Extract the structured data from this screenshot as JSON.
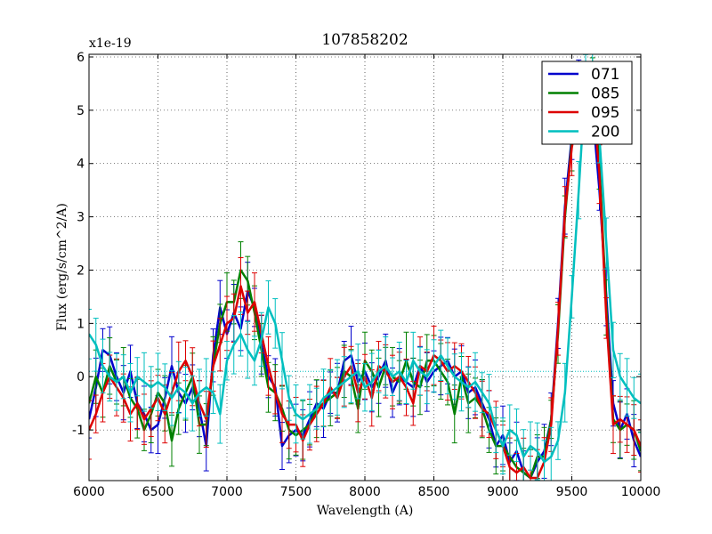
{
  "chart_data": {
    "type": "line",
    "title": "107858202",
    "xlabel": "Wavelength (A)",
    "ylabel": "Flux (erg/s/cm^2/A)",
    "y_offset_label": "x1e-19",
    "xlim": [
      6000,
      10000
    ],
    "ylim": [
      -1.95,
      6.05
    ],
    "x_ticks": [
      6000,
      6500,
      7000,
      7500,
      8000,
      8500,
      9000,
      9500,
      10000
    ],
    "y_ticks": [
      -1,
      0,
      1,
      2,
      3,
      4,
      5,
      6
    ],
    "grid": true,
    "legend_position": "top-right",
    "reference_line": {
      "y": 0.1,
      "style": "dotted",
      "color": "#00bfbf"
    },
    "series": [
      {
        "name": "071",
        "color": "#0000cc",
        "x": [
          6000,
          6050,
          6100,
          6150,
          6200,
          6250,
          6300,
          6350,
          6400,
          6450,
          6500,
          6550,
          6600,
          6650,
          6700,
          6750,
          6800,
          6850,
          6900,
          6950,
          7000,
          7050,
          7100,
          7150,
          7200,
          7250,
          7300,
          7350,
          7400,
          7450,
          7500,
          7550,
          7600,
          7650,
          7700,
          7750,
          7800,
          7850,
          7900,
          7950,
          8000,
          8050,
          8100,
          8150,
          8200,
          8250,
          8300,
          8350,
          8400,
          8450,
          8500,
          8550,
          8600,
          8650,
          8700,
          8750,
          8800,
          8850,
          8900,
          8950,
          9000,
          9050,
          9100,
          9150,
          9200,
          9250,
          9300,
          9350,
          9400,
          9450,
          9500,
          9550,
          9600,
          9650,
          9700,
          9750,
          9800,
          9850,
          9900,
          9950,
          10000
        ],
        "y": [
          -0.8,
          -0.2,
          0.5,
          0.4,
          0.0,
          -0.3,
          0.1,
          -0.5,
          -0.7,
          -1.0,
          -0.9,
          -0.4,
          0.2,
          -0.3,
          -0.5,
          -0.2,
          -0.6,
          -1.3,
          0.4,
          1.3,
          0.8,
          1.2,
          0.9,
          1.6,
          1.3,
          0.6,
          0.0,
          -0.2,
          -1.3,
          -1.1,
          -1.0,
          -1.1,
          -0.8,
          -0.5,
          -0.6,
          -0.3,
          -0.3,
          0.3,
          0.4,
          -0.1,
          0.1,
          -0.2,
          0.0,
          0.3,
          -0.3,
          0.0,
          -0.1,
          -0.2,
          0.2,
          -0.1,
          0.1,
          0.2,
          0.3,
          0.0,
          0.1,
          -0.3,
          -0.2,
          -0.5,
          -0.8,
          -1.3,
          -1.1,
          -1.6,
          -1.4,
          -1.8,
          -1.9,
          -1.6,
          -1.4,
          -0.8,
          1.0,
          3.2,
          4.5,
          5.4,
          5.8,
          5.0,
          3.5,
          1.5,
          -0.5,
          -1.0,
          -0.7,
          -1.2,
          -1.5
        ]
      },
      {
        "name": "085",
        "color": "#008000",
        "x": [
          6000,
          6050,
          6100,
          6150,
          6200,
          6250,
          6300,
          6350,
          6400,
          6450,
          6500,
          6550,
          6600,
          6650,
          6700,
          6750,
          6800,
          6850,
          6900,
          6950,
          7000,
          7050,
          7100,
          7150,
          7200,
          7250,
          7300,
          7350,
          7400,
          7450,
          7500,
          7550,
          7600,
          7650,
          7700,
          7750,
          7800,
          7850,
          7900,
          7950,
          8000,
          8050,
          8100,
          8150,
          8200,
          8250,
          8300,
          8350,
          8400,
          8450,
          8500,
          8550,
          8600,
          8650,
          8700,
          8750,
          8800,
          8850,
          8900,
          8950,
          9000,
          9050,
          9100,
          9150,
          9200,
          9250,
          9300,
          9350,
          9400,
          9450,
          9500,
          9550,
          9600,
          9650,
          9700,
          9750,
          9800,
          9850,
          9900,
          9950,
          10000
        ],
        "y": [
          -0.5,
          0.0,
          -0.3,
          0.2,
          -0.1,
          0.0,
          -0.4,
          -0.6,
          -1.0,
          -0.7,
          -0.3,
          -0.5,
          -1.2,
          -0.6,
          -0.3,
          0.0,
          -0.9,
          -0.9,
          0.2,
          1.0,
          1.4,
          1.4,
          2.0,
          1.8,
          1.2,
          0.5,
          -0.2,
          -0.3,
          -0.6,
          -1.0,
          -1.1,
          -1.0,
          -0.9,
          -0.6,
          -0.5,
          -0.4,
          -0.3,
          0.1,
          0.0,
          -0.6,
          0.3,
          0.1,
          -0.2,
          0.2,
          0.0,
          -0.1,
          0.3,
          -0.1,
          -0.2,
          0.3,
          0.3,
          0.1,
          -0.1,
          -0.7,
          0.0,
          -0.5,
          -0.4,
          -0.6,
          -1.0,
          -1.3,
          -1.3,
          -1.5,
          -1.7,
          -1.8,
          -1.9,
          -1.5,
          -1.5,
          -0.8,
          0.8,
          3.0,
          4.4,
          5.2,
          5.8,
          5.5,
          4.0,
          1.3,
          -0.8,
          -1.0,
          -0.9,
          -1.0,
          -1.4
        ]
      },
      {
        "name": "095",
        "color": "#dd0000",
        "x": [
          6000,
          6050,
          6100,
          6150,
          6200,
          6250,
          6300,
          6350,
          6400,
          6450,
          6500,
          6550,
          6600,
          6650,
          6700,
          6750,
          6800,
          6850,
          6900,
          6950,
          7000,
          7050,
          7100,
          7150,
          7200,
          7250,
          7300,
          7350,
          7400,
          7450,
          7500,
          7550,
          7600,
          7650,
          7700,
          7750,
          7800,
          7850,
          7900,
          7950,
          8000,
          8050,
          8100,
          8150,
          8200,
          8250,
          8300,
          8350,
          8400,
          8450,
          8500,
          8550,
          8600,
          8650,
          8700,
          8750,
          8800,
          8850,
          8900,
          8950,
          9000,
          9050,
          9100,
          9150,
          9200,
          9250,
          9300,
          9350,
          9400,
          9450,
          9500,
          9550,
          9600,
          9650,
          9700,
          9750,
          9800,
          9850,
          9900,
          9950,
          10000
        ],
        "y": [
          -1.0,
          -0.7,
          -0.3,
          0.0,
          -0.2,
          -0.4,
          -0.7,
          -0.5,
          -0.8,
          -0.6,
          -0.4,
          -0.7,
          -0.3,
          0.1,
          0.3,
          0.0,
          -0.5,
          -0.8,
          0.2,
          0.6,
          1.0,
          1.1,
          1.7,
          1.2,
          1.4,
          0.8,
          0.2,
          -0.3,
          -0.7,
          -0.9,
          -0.9,
          -1.2,
          -0.9,
          -0.7,
          -0.5,
          -0.2,
          -0.4,
          0.0,
          0.2,
          -0.3,
          0.0,
          -0.4,
          0.2,
          0.1,
          -0.1,
          0.0,
          -0.2,
          -0.5,
          0.2,
          0.1,
          0.4,
          0.3,
          0.1,
          0.2,
          0.1,
          -0.1,
          -0.3,
          -0.6,
          -0.7,
          -1.0,
          -1.3,
          -1.7,
          -1.8,
          -1.7,
          -1.9,
          -1.9,
          -1.6,
          -0.9,
          0.9,
          3.1,
          4.3,
          5.0,
          5.6,
          5.3,
          3.8,
          1.1,
          -0.9,
          -0.8,
          -0.9,
          -1.0,
          -1.3
        ]
      },
      {
        "name": "200",
        "color": "#00bfbf",
        "x": [
          6000,
          6050,
          6100,
          6150,
          6200,
          6250,
          6300,
          6350,
          6400,
          6450,
          6500,
          6550,
          6600,
          6650,
          6700,
          6750,
          6800,
          6850,
          6900,
          6950,
          7000,
          7050,
          7100,
          7150,
          7200,
          7250,
          7300,
          7350,
          7400,
          7450,
          7500,
          7550,
          7600,
          7650,
          7700,
          7750,
          7800,
          7850,
          7900,
          7950,
          8000,
          8050,
          8100,
          8150,
          8200,
          8250,
          8300,
          8350,
          8400,
          8450,
          8500,
          8550,
          8600,
          8650,
          8700,
          8750,
          8800,
          8850,
          8900,
          8950,
          9000,
          9050,
          9100,
          9150,
          9200,
          9250,
          9300,
          9350,
          9400,
          9450,
          9500,
          9550,
          9600,
          9650,
          9700,
          9750,
          9800,
          9850,
          9900,
          9950,
          10000
        ],
        "y": [
          0.8,
          0.6,
          0.2,
          0.0,
          -0.1,
          0.0,
          -0.3,
          0.0,
          -0.1,
          -0.2,
          -0.1,
          -0.2,
          -0.4,
          -0.2,
          -0.3,
          -0.5,
          -0.3,
          -0.2,
          -0.3,
          -0.7,
          0.3,
          0.6,
          0.8,
          0.5,
          0.3,
          0.7,
          1.3,
          1.0,
          0.3,
          -0.4,
          -0.7,
          -0.8,
          -0.7,
          -0.6,
          -0.4,
          -0.3,
          -0.2,
          -0.1,
          0.0,
          0.1,
          -0.2,
          -0.1,
          0.1,
          0.2,
          0.0,
          0.1,
          -0.1,
          0.3,
          0.1,
          0.0,
          0.2,
          0.4,
          0.2,
          0.0,
          -0.1,
          -0.2,
          -0.1,
          -0.3,
          -0.5,
          -1.0,
          -1.3,
          -1.0,
          -1.1,
          -1.5,
          -1.3,
          -1.4,
          -1.6,
          -1.5,
          -1.2,
          -0.3,
          1.5,
          3.5,
          5.6,
          5.9,
          4.5,
          2.5,
          0.5,
          0.0,
          -0.2,
          -0.4,
          -0.5
        ]
      }
    ]
  }
}
